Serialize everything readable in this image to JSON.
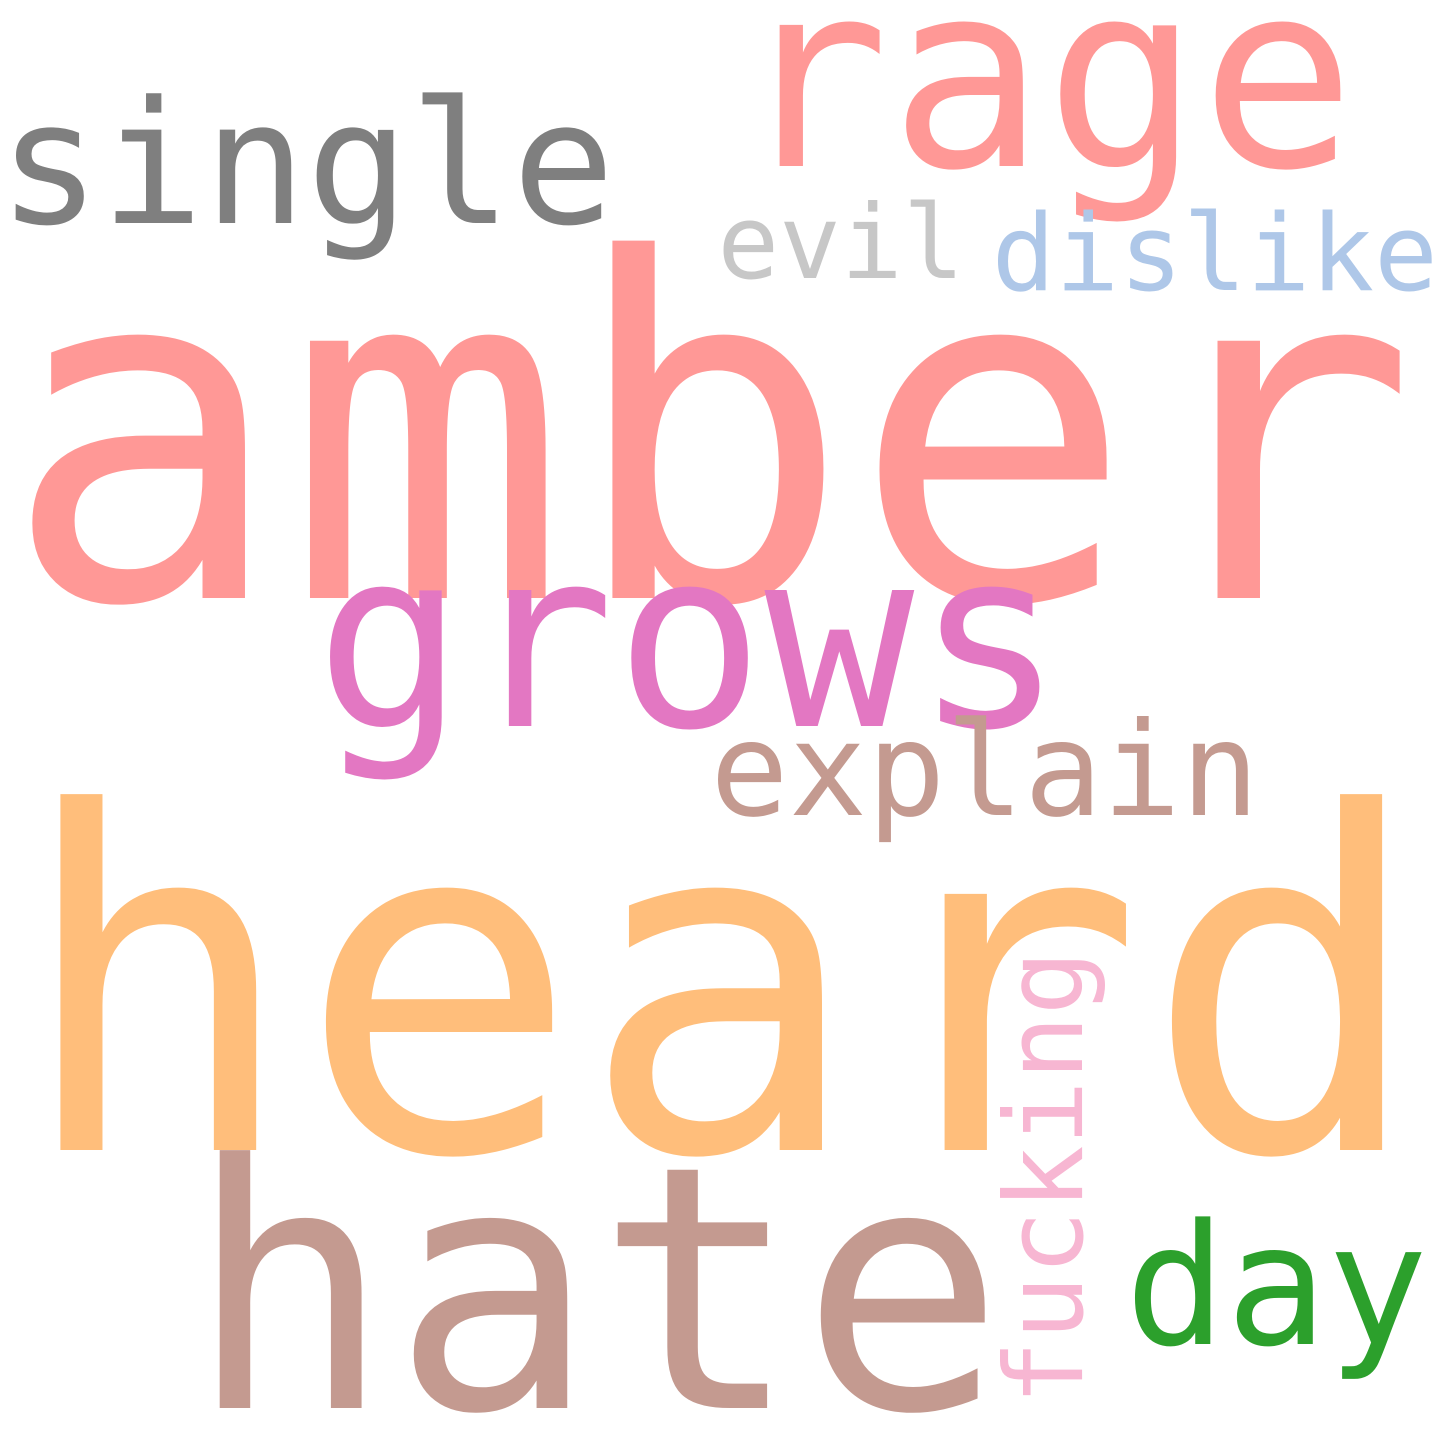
{
  "words": [
    {
      "id": "amber",
      "text": "amber",
      "color": "#FF9896",
      "vertical": false
    },
    {
      "id": "heard",
      "text": "heard",
      "color": "#FFBE7B",
      "vertical": false
    },
    {
      "id": "hate",
      "text": "hate",
      "color": "#C49A90",
      "vertical": false
    },
    {
      "id": "grows",
      "text": "grows",
      "color": "#E377C2",
      "vertical": false
    },
    {
      "id": "rage",
      "text": "rage",
      "color": "#FF9896",
      "vertical": false
    },
    {
      "id": "single",
      "text": "single",
      "color": "#7F7F7F",
      "vertical": false
    },
    {
      "id": "explain",
      "text": "explain",
      "color": "#C49A90",
      "vertical": false
    },
    {
      "id": "day",
      "text": "day",
      "color": "#2CA02C",
      "vertical": false
    },
    {
      "id": "dislike",
      "text": "dislike",
      "color": "#AEC7E8",
      "vertical": false
    },
    {
      "id": "evil",
      "text": "evil",
      "color": "#C7C7C7",
      "vertical": false
    },
    {
      "id": "fucking",
      "text": "fucking",
      "color": "#F7B6D2",
      "vertical": true
    }
  ]
}
